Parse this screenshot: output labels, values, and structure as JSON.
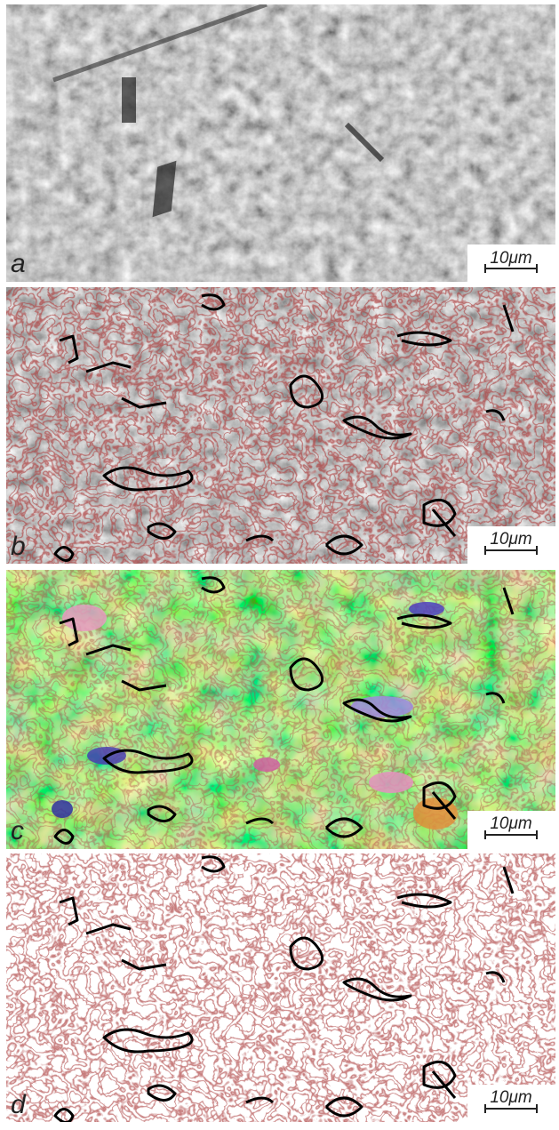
{
  "panels": [
    {
      "label": "a",
      "scale_bar": "10μm"
    },
    {
      "label": "b",
      "scale_bar": "10μm"
    },
    {
      "label": "c",
      "scale_bar": "10μm"
    },
    {
      "label": "d",
      "scale_bar": "10μm"
    }
  ]
}
